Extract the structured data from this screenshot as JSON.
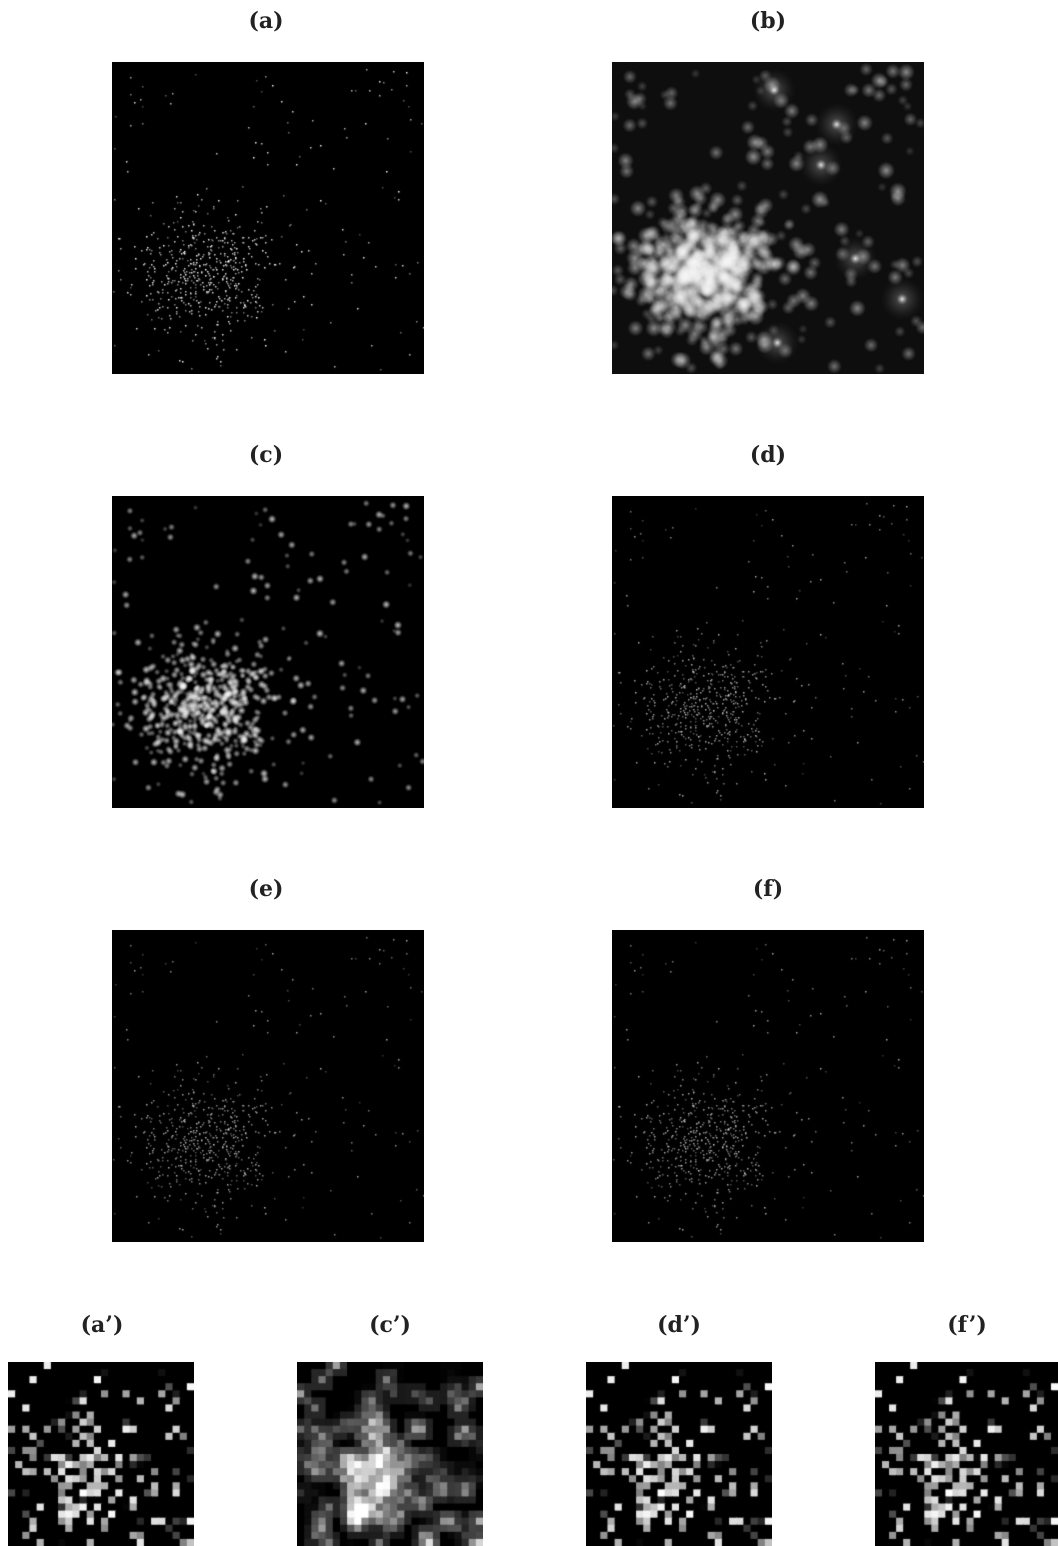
{
  "panels": {
    "a": {
      "label": "(a)",
      "style": "sharp"
    },
    "b": {
      "label": "(b)",
      "style": "blurred-halo"
    },
    "c": {
      "label": "(c)",
      "style": "soft"
    },
    "d": {
      "label": "(d)",
      "style": "sharp-dim"
    },
    "e": {
      "label": "(e)",
      "style": "sharp-dim"
    },
    "f": {
      "label": "(f)",
      "style": "sharp-dim"
    },
    "a_prime": {
      "label": "(a’)",
      "style": "pixel-sharp"
    },
    "c_prime": {
      "label": "(c’)",
      "style": "pixel-soft"
    },
    "d_prime": {
      "label": "(d’)",
      "style": "pixel-sharp"
    },
    "f_prime": {
      "label": "(f’)",
      "style": "pixel-sharp"
    }
  }
}
